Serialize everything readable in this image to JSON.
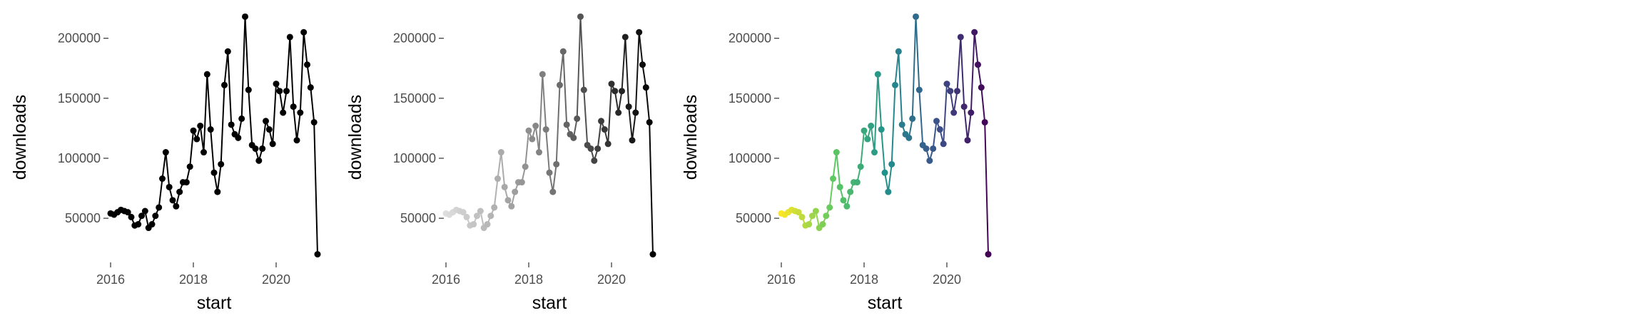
{
  "chart_data": [
    {
      "type": "line",
      "color_mode": "single",
      "xlabel": "start",
      "ylabel": "downloads",
      "xlim": [
        2016,
        2021
      ],
      "ylim": [
        15000,
        220000
      ],
      "xticks": [
        2016,
        2018,
        2020
      ],
      "xtick_labels": [
        "2016",
        "2018",
        "2020"
      ],
      "yticks": [
        50000,
        100000,
        150000,
        200000
      ],
      "ytick_labels": [
        "50000",
        "100000",
        "150000",
        "200000"
      ],
      "grid": false,
      "colors": [
        "#000000"
      ],
      "series": [
        {
          "x": [
            2016.0,
            2016.083,
            2016.167,
            2016.25,
            2016.333,
            2016.417,
            2016.5,
            2016.583,
            2016.667,
            2016.75,
            2016.833,
            2016.917,
            2017.0,
            2017.083,
            2017.167,
            2017.25,
            2017.333,
            2017.417,
            2017.5,
            2017.583,
            2017.667,
            2017.75,
            2017.833,
            2017.917,
            2018.0,
            2018.083,
            2018.167,
            2018.25,
            2018.333,
            2018.417,
            2018.5,
            2018.583,
            2018.667,
            2018.75,
            2018.833,
            2018.917,
            2019.0,
            2019.083,
            2019.167,
            2019.25,
            2019.333,
            2019.417,
            2019.5,
            2019.583,
            2019.667,
            2019.75,
            2019.833,
            2019.917,
            2020.0,
            2020.083,
            2020.167,
            2020.25,
            2020.333,
            2020.417,
            2020.5,
            2020.583,
            2020.667,
            2020.75,
            2020.833,
            2020.917,
            2021.0
          ],
          "y": [
            54000,
            53000,
            55000,
            57000,
            56000,
            55000,
            51000,
            44000,
            45000,
            52000,
            56000,
            42000,
            45000,
            52000,
            59000,
            83000,
            105000,
            76000,
            65000,
            60000,
            72000,
            80000,
            80000,
            93000,
            123000,
            116000,
            127000,
            105000,
            170000,
            124000,
            88000,
            72000,
            95000,
            161000,
            189000,
            128000,
            120000,
            117000,
            133000,
            218000,
            157000,
            111000,
            108000,
            98000,
            108000,
            131000,
            124000,
            112000,
            162000,
            156000,
            138000,
            156000,
            201000,
            143000,
            115000,
            138000,
            205000,
            178000,
            159000,
            130000,
            20000
          ]
        }
      ]
    },
    {
      "type": "line",
      "color_mode": "gradient",
      "xlabel": "start",
      "ylabel": "downloads",
      "xlim": [
        2016,
        2021
      ],
      "ylim": [
        15000,
        220000
      ],
      "xticks": [
        2016,
        2018,
        2020
      ],
      "xtick_labels": [
        "2016",
        "2018",
        "2020"
      ],
      "yticks": [
        50000,
        100000,
        150000,
        200000
      ],
      "ytick_labels": [
        "50000",
        "100000",
        "150000",
        "200000"
      ],
      "grid": false,
      "colors": [
        "#dedede",
        "#9e9e9e",
        "#505050",
        "#000000"
      ],
      "series": [
        {
          "x": [
            2016.0,
            2016.083,
            2016.167,
            2016.25,
            2016.333,
            2016.417,
            2016.5,
            2016.583,
            2016.667,
            2016.75,
            2016.833,
            2016.917,
            2017.0,
            2017.083,
            2017.167,
            2017.25,
            2017.333,
            2017.417,
            2017.5,
            2017.583,
            2017.667,
            2017.75,
            2017.833,
            2017.917,
            2018.0,
            2018.083,
            2018.167,
            2018.25,
            2018.333,
            2018.417,
            2018.5,
            2018.583,
            2018.667,
            2018.75,
            2018.833,
            2018.917,
            2019.0,
            2019.083,
            2019.167,
            2019.25,
            2019.333,
            2019.417,
            2019.5,
            2019.583,
            2019.667,
            2019.75,
            2019.833,
            2019.917,
            2020.0,
            2020.083,
            2020.167,
            2020.25,
            2020.333,
            2020.417,
            2020.5,
            2020.583,
            2020.667,
            2020.75,
            2020.833,
            2020.917,
            2021.0
          ],
          "y": [
            54000,
            53000,
            55000,
            57000,
            56000,
            55000,
            51000,
            44000,
            45000,
            52000,
            56000,
            42000,
            45000,
            52000,
            59000,
            83000,
            105000,
            76000,
            65000,
            60000,
            72000,
            80000,
            80000,
            93000,
            123000,
            116000,
            127000,
            105000,
            170000,
            124000,
            88000,
            72000,
            95000,
            161000,
            189000,
            128000,
            120000,
            117000,
            133000,
            218000,
            157000,
            111000,
            108000,
            98000,
            108000,
            131000,
            124000,
            112000,
            162000,
            156000,
            138000,
            156000,
            201000,
            143000,
            115000,
            138000,
            205000,
            178000,
            159000,
            130000,
            20000
          ]
        }
      ]
    },
    {
      "type": "line",
      "color_mode": "gradient",
      "xlabel": "start",
      "ylabel": "downloads",
      "xlim": [
        2016,
        2021
      ],
      "ylim": [
        15000,
        220000
      ],
      "xticks": [
        2016,
        2018,
        2020
      ],
      "xtick_labels": [
        "2016",
        "2018",
        "2020"
      ],
      "yticks": [
        50000,
        100000,
        150000,
        200000
      ],
      "ytick_labels": [
        "50000",
        "100000",
        "150000",
        "200000"
      ],
      "grid": false,
      "colors": [
        "#fde725",
        "#5ec962",
        "#21918c",
        "#3b528b",
        "#440154"
      ],
      "series": [
        {
          "x": [
            2016.0,
            2016.083,
            2016.167,
            2016.25,
            2016.333,
            2016.417,
            2016.5,
            2016.583,
            2016.667,
            2016.75,
            2016.833,
            2016.917,
            2017.0,
            2017.083,
            2017.167,
            2017.25,
            2017.333,
            2017.417,
            2017.5,
            2017.583,
            2017.667,
            2017.75,
            2017.833,
            2017.917,
            2018.0,
            2018.083,
            2018.167,
            2018.25,
            2018.333,
            2018.417,
            2018.5,
            2018.583,
            2018.667,
            2018.75,
            2018.833,
            2018.917,
            2019.0,
            2019.083,
            2019.167,
            2019.25,
            2019.333,
            2019.417,
            2019.5,
            2019.583,
            2019.667,
            2019.75,
            2019.833,
            2019.917,
            2020.0,
            2020.083,
            2020.167,
            2020.25,
            2020.333,
            2020.417,
            2020.5,
            2020.583,
            2020.667,
            2020.75,
            2020.833,
            2020.917,
            2021.0
          ],
          "y": [
            54000,
            53000,
            55000,
            57000,
            56000,
            55000,
            51000,
            44000,
            45000,
            52000,
            56000,
            42000,
            45000,
            52000,
            59000,
            83000,
            105000,
            76000,
            65000,
            60000,
            72000,
            80000,
            80000,
            93000,
            123000,
            116000,
            127000,
            105000,
            170000,
            124000,
            88000,
            72000,
            95000,
            161000,
            189000,
            128000,
            120000,
            117000,
            133000,
            218000,
            157000,
            111000,
            108000,
            98000,
            108000,
            131000,
            124000,
            112000,
            162000,
            156000,
            138000,
            156000,
            201000,
            143000,
            115000,
            138000,
            205000,
            178000,
            159000,
            130000,
            20000
          ]
        }
      ]
    }
  ]
}
